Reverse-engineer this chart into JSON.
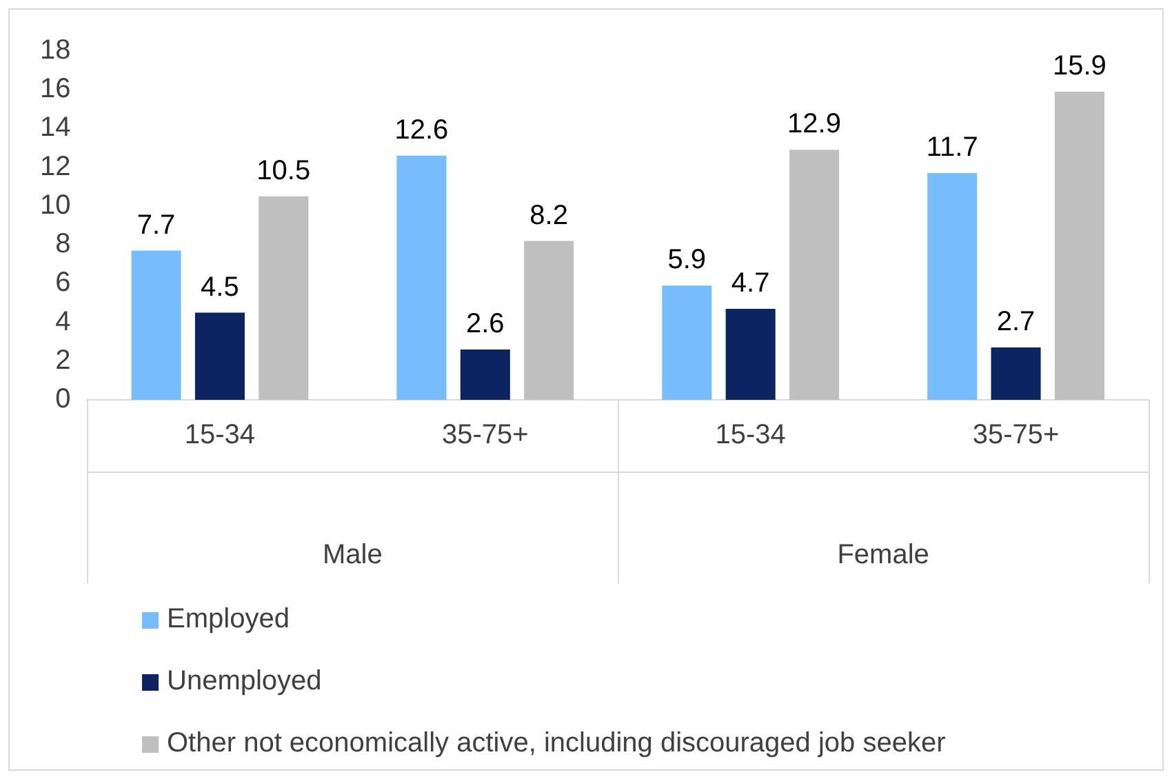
{
  "chart_data": {
    "type": "bar",
    "categories": [
      "15-34",
      "35-75+",
      "15-34",
      "35-75+"
    ],
    "annotations": [
      "Male",
      "Female"
    ],
    "series": [
      {
        "name": "Employed",
        "color": "#75bdfd",
        "values": [
          7.7,
          12.6,
          5.9,
          11.7
        ]
      },
      {
        "name": "Unemployed",
        "color": "#0c2461",
        "values": [
          4.5,
          2.6,
          4.7,
          2.7
        ]
      },
      {
        "name": "Other not economically active, including discouraged job seeker",
        "color": "#bfbfbf",
        "values": [
          10.5,
          8.2,
          12.9,
          15.9
        ]
      }
    ],
    "ylim": [
      0,
      18
    ],
    "yticks": [
      0,
      2,
      4,
      6,
      8,
      10,
      12,
      14,
      16,
      18
    ],
    "grid": false,
    "legend": "bottom",
    "data_labels": true
  }
}
